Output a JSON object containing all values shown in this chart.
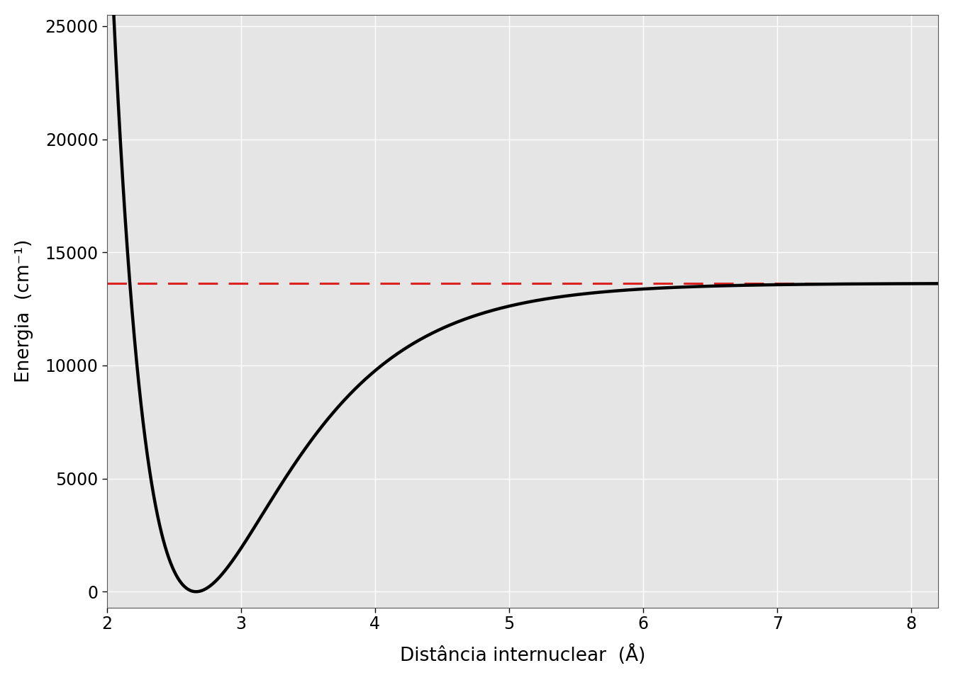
{
  "title": "",
  "xlabel": "Distância internuclear  (Å)",
  "ylabel": "Energia  (cm⁻¹)",
  "De": 13630.0,
  "re": 2.666,
  "beta": 1.404,
  "x_min": 2.05,
  "x_max": 8.2,
  "y_min": -700,
  "y_max": 25500,
  "morse_color": "#000000",
  "dashed_color": "#dd2222",
  "line_width": 3.2,
  "dashed_lw": 2.2,
  "background_color": "#e5e5e5",
  "grid_color": "#ffffff",
  "xlabel_fontsize": 19,
  "ylabel_fontsize": 19,
  "tick_fontsize": 17
}
